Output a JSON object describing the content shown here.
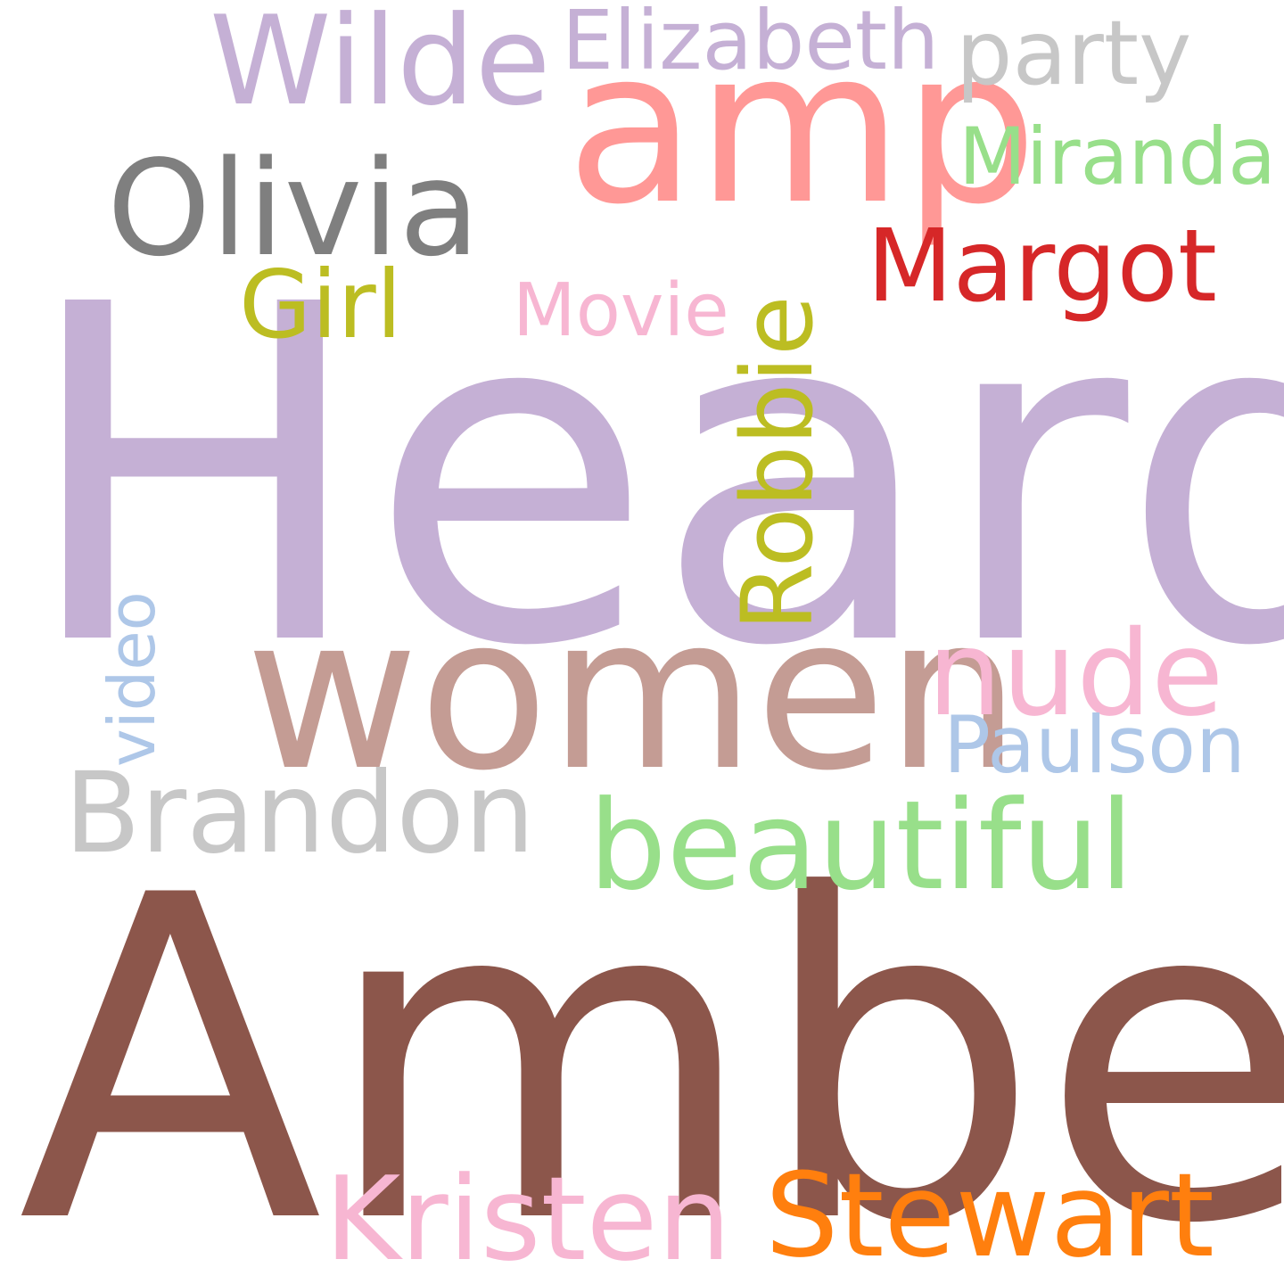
{
  "words": {
    "heard": {
      "text": "Heard",
      "color": "#c5b0d5"
    },
    "amber": {
      "text": "Amber",
      "color": "#8c564b"
    },
    "women": {
      "text": "women",
      "color": "#c49c94"
    },
    "amp": {
      "text": "amp",
      "color": "#ff9896"
    },
    "olivia": {
      "text": "Olivia",
      "color": "#7f7f7f"
    },
    "wilde": {
      "text": "Wilde",
      "color": "#c5b0d5"
    },
    "beautiful": {
      "text": "beautiful",
      "color": "#98df8a"
    },
    "brandon": {
      "text": "Brandon",
      "color": "#c7c7c7"
    },
    "kristen": {
      "text": "Kristen",
      "color": "#f7b6d2"
    },
    "stewart": {
      "text": "Stewart",
      "color": "#ff7f0e"
    },
    "nude": {
      "text": "nude",
      "color": "#f7b6d2"
    },
    "margot": {
      "text": "Margot",
      "color": "#d62728"
    },
    "robbie": {
      "text": "Robbie",
      "color": "#bcbd22"
    },
    "elizabeth": {
      "text": "Elizabeth",
      "color": "#c5b0d5"
    },
    "party": {
      "text": "party",
      "color": "#c7c7c7"
    },
    "miranda": {
      "text": "Miranda",
      "color": "#98df8a"
    },
    "girl": {
      "text": "Girl",
      "color": "#bcbd22"
    },
    "movie": {
      "text": "Movie",
      "color": "#f7b6d2"
    },
    "paulson": {
      "text": "Paulson",
      "color": "#aec7e8"
    },
    "video": {
      "text": "video",
      "color": "#aec7e8"
    }
  }
}
